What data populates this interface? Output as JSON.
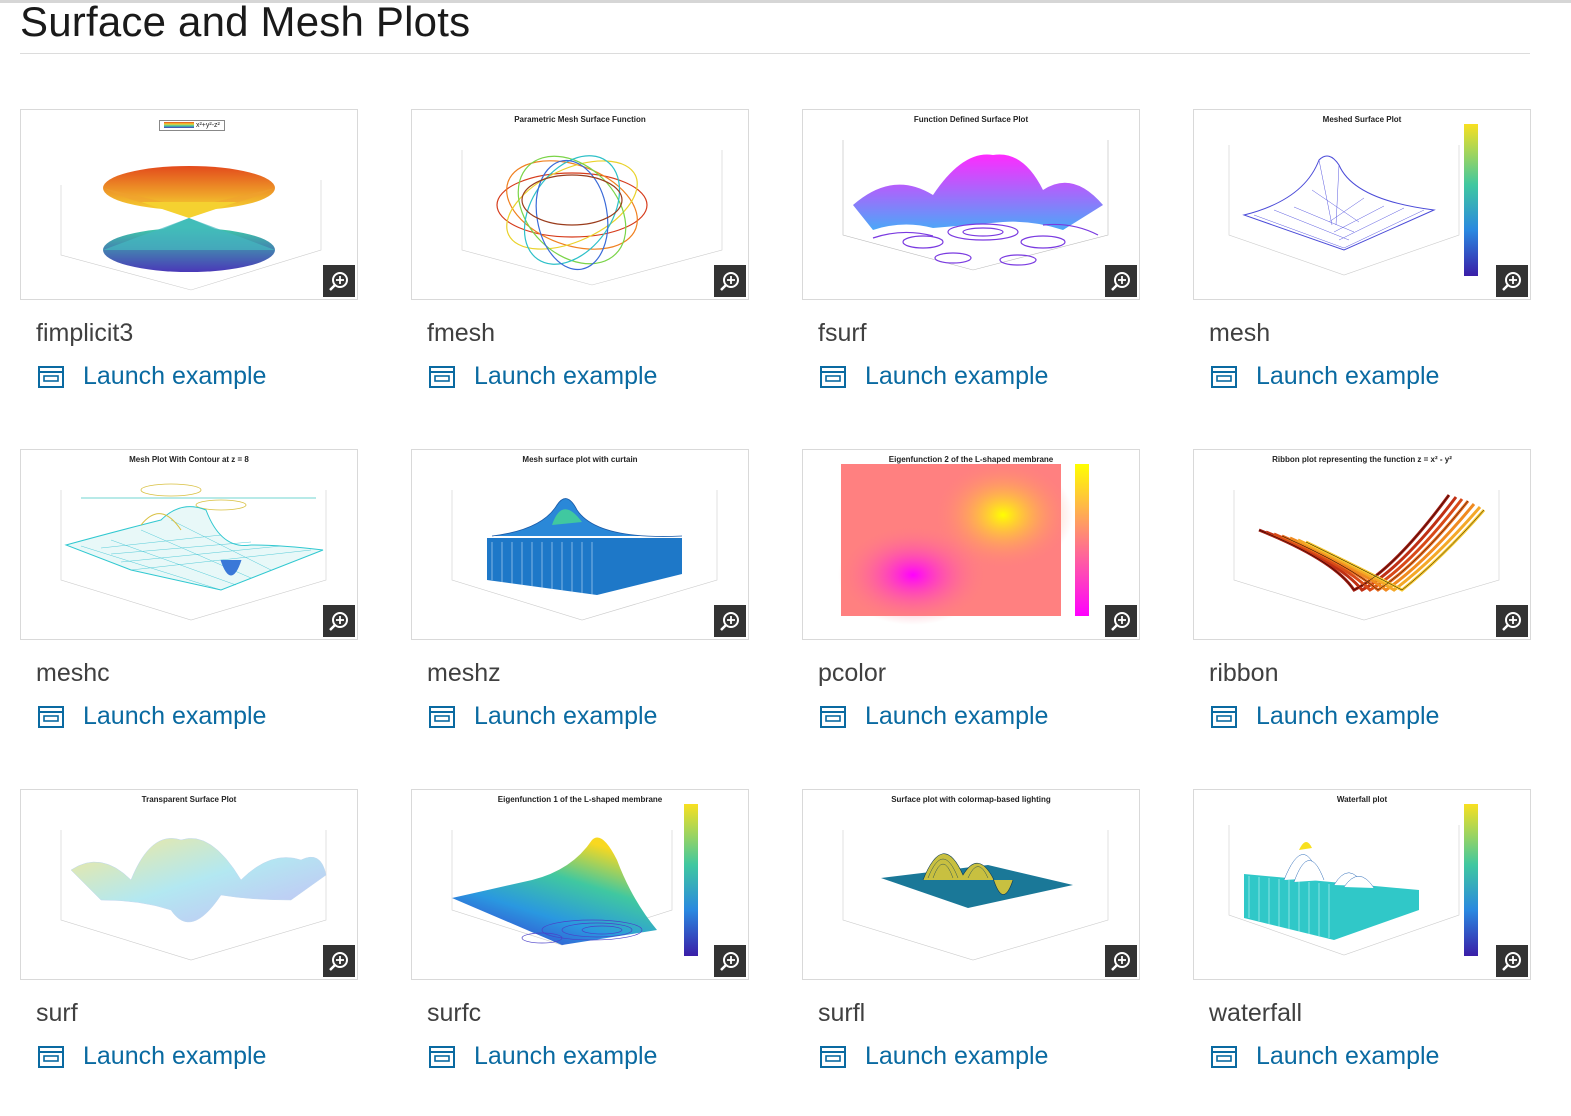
{
  "page": {
    "title": "Surface and Mesh Plots"
  },
  "launch_label": "Launch example",
  "examples": [
    {
      "name": "fimplicit3",
      "plot_title": "",
      "legend": "x²+y²-z²"
    },
    {
      "name": "fmesh",
      "plot_title": "Parametric Mesh Surface Function"
    },
    {
      "name": "fsurf",
      "plot_title": "Function Defined Surface Plot"
    },
    {
      "name": "mesh",
      "plot_title": "Meshed Surface Plot"
    },
    {
      "name": "meshc",
      "plot_title": "Mesh Plot With Contour at z = 8"
    },
    {
      "name": "meshz",
      "plot_title": "Mesh surface plot with curtain"
    },
    {
      "name": "pcolor",
      "plot_title": "Eigenfunction 2 of the L-shaped membrane"
    },
    {
      "name": "ribbon",
      "plot_title": "Ribbon plot representing the function z = x² - y²"
    },
    {
      "name": "surf",
      "plot_title": "Transparent Surface Plot"
    },
    {
      "name": "surfc",
      "plot_title": "Eigenfunction 1 of the L-shaped membrane"
    },
    {
      "name": "surfl",
      "plot_title": "Surface plot with colormap-based lighting"
    },
    {
      "name": "waterfall",
      "plot_title": "Waterfall plot"
    }
  ],
  "colors": {
    "link": "#0a6aa1",
    "zoom_bg": "#333333",
    "border": "#d9d9d9"
  },
  "icons": {
    "zoom": "zoom-in-icon",
    "launch": "launch-example-icon"
  }
}
